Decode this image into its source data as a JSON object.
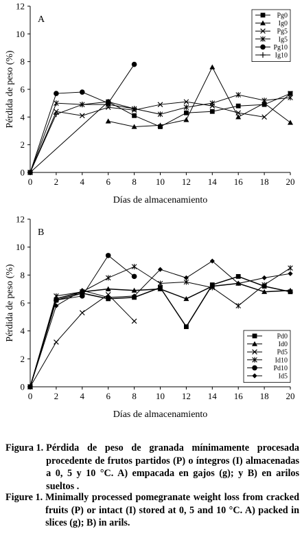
{
  "chart_data": [
    {
      "type": "line",
      "panel_label": "A",
      "xlabel": "Días de almacenamiento",
      "ylabel": "Pérdida de peso (%)",
      "xlim": [
        0,
        20
      ],
      "ylim": [
        0,
        12
      ],
      "xticks": [
        0,
        2,
        4,
        6,
        8,
        10,
        12,
        14,
        16,
        18,
        20
      ],
      "yticks": [
        0,
        2,
        4,
        6,
        8,
        10,
        12
      ],
      "grid": false,
      "legend_position": "top-right",
      "series": [
        {
          "name": "Pg0",
          "marker": "square",
          "x": [
            0,
            6,
            8,
            10,
            12,
            14,
            16,
            18,
            20
          ],
          "y": [
            0,
            5.1,
            4.1,
            3.3,
            4.3,
            4.4,
            4.8,
            4.9,
            5.7
          ]
        },
        {
          "name": "Ig0",
          "marker": "triangle",
          "x": [
            6,
            8,
            10,
            12,
            14,
            16,
            18,
            20
          ],
          "y": [
            3.7,
            3.3,
            3.4,
            3.8,
            7.6,
            4.0,
            5.0,
            3.6
          ]
        },
        {
          "name": "Pg5",
          "marker": "x",
          "x": [
            0,
            2,
            4,
            6,
            8,
            10,
            12,
            14,
            16,
            18,
            20
          ],
          "y": [
            0,
            4.4,
            4.1,
            4.7,
            4.5,
            4.9,
            5.1,
            4.8,
            4.3,
            4.0,
            5.7
          ]
        },
        {
          "name": "Ig5",
          "marker": "star",
          "x": [
            0,
            2,
            4,
            6,
            8,
            10,
            12,
            14,
            16,
            18,
            20
          ],
          "y": [
            0,
            5.0,
            4.9,
            4.9,
            4.6,
            4.2,
            4.7,
            5.0,
            5.6,
            5.2,
            5.4
          ]
        },
        {
          "name": "Pg10",
          "marker": "circle",
          "x": [
            0,
            2,
            4,
            6,
            8
          ],
          "y": [
            0,
            5.7,
            5.8,
            5.0,
            7.8
          ]
        },
        {
          "name": "Ig10",
          "marker": "plus",
          "x": [
            0,
            2,
            4,
            6,
            8
          ],
          "y": [
            0,
            4.2,
            4.9,
            5.1,
            4.6
          ]
        }
      ]
    },
    {
      "type": "line",
      "panel_label": "B",
      "xlabel": "Días de almacenamiento",
      "ylabel": "Pérdida de peso (%)",
      "xlim": [
        0,
        20
      ],
      "ylim": [
        0,
        12
      ],
      "xticks": [
        0,
        2,
        4,
        6,
        8,
        10,
        12,
        14,
        16,
        18,
        20
      ],
      "yticks": [
        0,
        2,
        4,
        6,
        8,
        10,
        12
      ],
      "grid": false,
      "legend_position": "bottom-right",
      "series": [
        {
          "name": "Pd0",
          "marker": "square",
          "x": [
            0,
            2,
            4,
            6,
            8,
            10,
            12,
            14,
            16,
            18,
            20
          ],
          "y": [
            0,
            6.2,
            6.7,
            6.3,
            6.4,
            7.1,
            4.3,
            7.3,
            7.9,
            7.2,
            6.8
          ]
        },
        {
          "name": "Id0",
          "marker": "triangle",
          "x": [
            0,
            2,
            4,
            6,
            8,
            10,
            12,
            14,
            16,
            18,
            20
          ],
          "y": [
            0,
            6.3,
            6.8,
            7.0,
            6.9,
            7.0,
            6.3,
            7.2,
            7.4,
            6.8,
            6.9
          ]
        },
        {
          "name": "Pd5",
          "marker": "x",
          "x": [
            0,
            2,
            4,
            6,
            8
          ],
          "y": [
            0,
            3.2,
            5.3,
            6.6,
            4.7
          ]
        },
        {
          "name": "Id10",
          "marker": "star",
          "x": [
            0,
            2,
            4,
            6,
            8,
            10,
            12,
            14,
            16,
            18,
            20
          ],
          "y": [
            0,
            6.5,
            6.8,
            7.8,
            8.6,
            7.4,
            7.5,
            7.1,
            5.8,
            7.3,
            8.5
          ]
        },
        {
          "name": "Pd10",
          "marker": "circle",
          "x": [
            0,
            2,
            4,
            6,
            8
          ],
          "y": [
            0,
            6.2,
            6.5,
            9.4,
            7.9
          ]
        },
        {
          "name": "Id5",
          "marker": "diamond",
          "x": [
            0,
            2,
            4,
            6,
            8,
            10,
            12,
            14,
            16,
            18,
            20
          ],
          "y": [
            0,
            5.8,
            6.9,
            6.4,
            6.5,
            8.4,
            7.8,
            9.0,
            7.4,
            7.8,
            8.1
          ]
        }
      ]
    }
  ],
  "captions": {
    "spanish": {
      "label": "Figura 1.",
      "text": "Pérdida de peso de granada mínimamente procesada procedente de frutos partidos (P) o íntegros (I) almacenadas a 0, 5 y 10 °C. A) empacada en gajos (g); y B) en arilos sueltos ."
    },
    "english": {
      "label": "Figure 1.",
      "text": "Minimally processed pomegranate weight loss from cracked fruits (P) or intact (I) stored at 0, 5 and 10 °C. A) packed in slices (g); B) in arils."
    }
  }
}
